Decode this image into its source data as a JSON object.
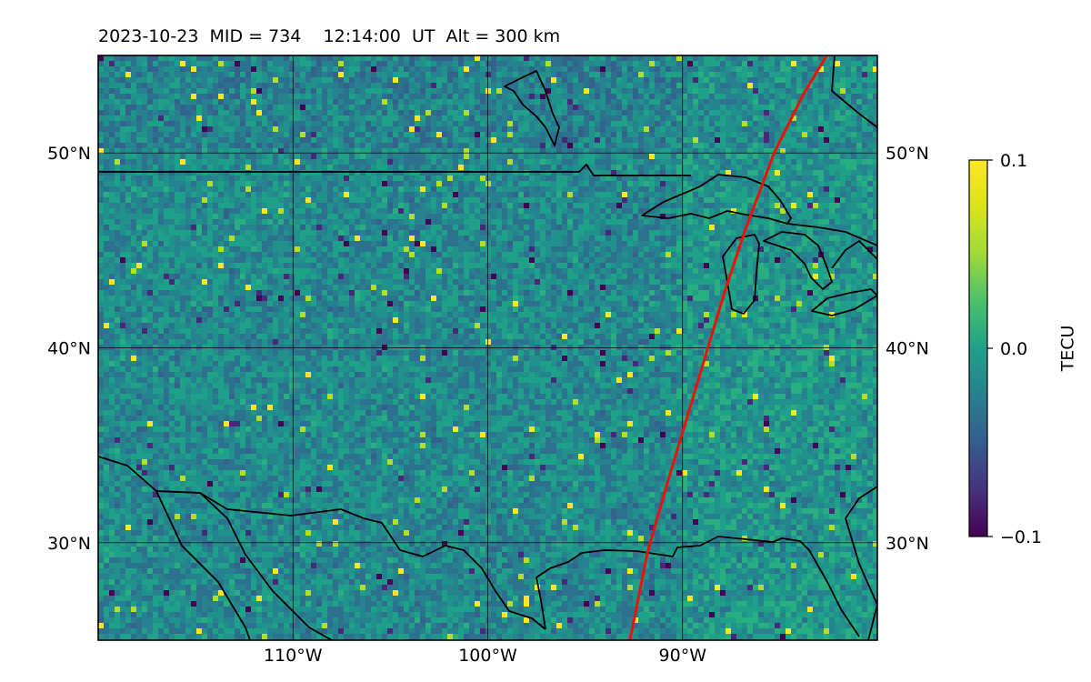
{
  "title": "2023-10-23  MID = 734    12:14:00  UT  Alt = 300 km",
  "map": {
    "lon_range": [
      -120,
      -80
    ],
    "lat_range": [
      25,
      55
    ],
    "lat_ticks": [
      {
        "value": 50,
        "label": "50°N"
      },
      {
        "value": 40,
        "label": "40°N"
      },
      {
        "value": 30,
        "label": "30°N"
      }
    ],
    "lon_ticks": [
      {
        "value": -110,
        "label": "110°W"
      },
      {
        "value": -100,
        "label": "100°W"
      },
      {
        "value": -90,
        "label": "90°W"
      }
    ],
    "gridlines": true,
    "track_color": "#e8140a",
    "track": [
      [
        -92.7,
        25
      ],
      [
        -91.8,
        29.5
      ],
      [
        -90.8,
        33
      ],
      [
        -89.6,
        37
      ],
      [
        -88.7,
        40
      ],
      [
        -87.8,
        43
      ],
      [
        -86.8,
        46
      ],
      [
        -85.3,
        50
      ],
      [
        -83.8,
        53
      ],
      [
        -82.6,
        55
      ]
    ],
    "coastline_color": "#000000"
  },
  "colorbar": {
    "label": "TECU",
    "min": -0.1,
    "max": 0.1,
    "ticks": [
      {
        "value": 0.1,
        "label": "0.1"
      },
      {
        "value": 0.0,
        "label": "0.0"
      },
      {
        "value": -0.1,
        "label": "−0.1"
      }
    ],
    "colormap": "viridis"
  }
}
